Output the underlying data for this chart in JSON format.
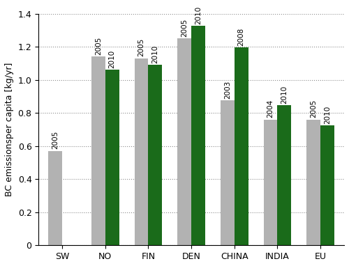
{
  "categories": [
    "SW",
    "NO",
    "FIN",
    "DEN",
    "CHINA",
    "INDIA",
    "EU"
  ],
  "gray_values": [
    0.57,
    1.14,
    1.13,
    1.25,
    0.875,
    0.76,
    0.76
  ],
  "green_values": [
    null,
    1.06,
    1.09,
    1.325,
    1.195,
    0.845,
    0.725
  ],
  "gray_labels": [
    "2005",
    "2005",
    "2005",
    "2005",
    "2003",
    "2004",
    "2005"
  ],
  "green_labels": [
    "",
    "2010",
    "2010",
    "2010",
    "2008",
    "2010",
    "2010"
  ],
  "gray_color": "#b2b2b2",
  "green_color": "#1a6b1a",
  "ylabel": "BC emissionsper capita [kg/yr]",
  "ylim": [
    0,
    1.4
  ],
  "yticks": [
    0,
    0.2,
    0.4,
    0.6,
    0.8,
    1.0,
    1.2,
    1.4
  ],
  "ytick_labels": [
    "0",
    "0.2",
    "0.4",
    "0.6",
    "0.8",
    "1.0",
    "1.2",
    "1.4"
  ],
  "bar_width": 0.32,
  "label_fontsize": 7.5,
  "tick_fontsize": 9,
  "ylabel_fontsize": 9,
  "background_color": "#ffffff"
}
